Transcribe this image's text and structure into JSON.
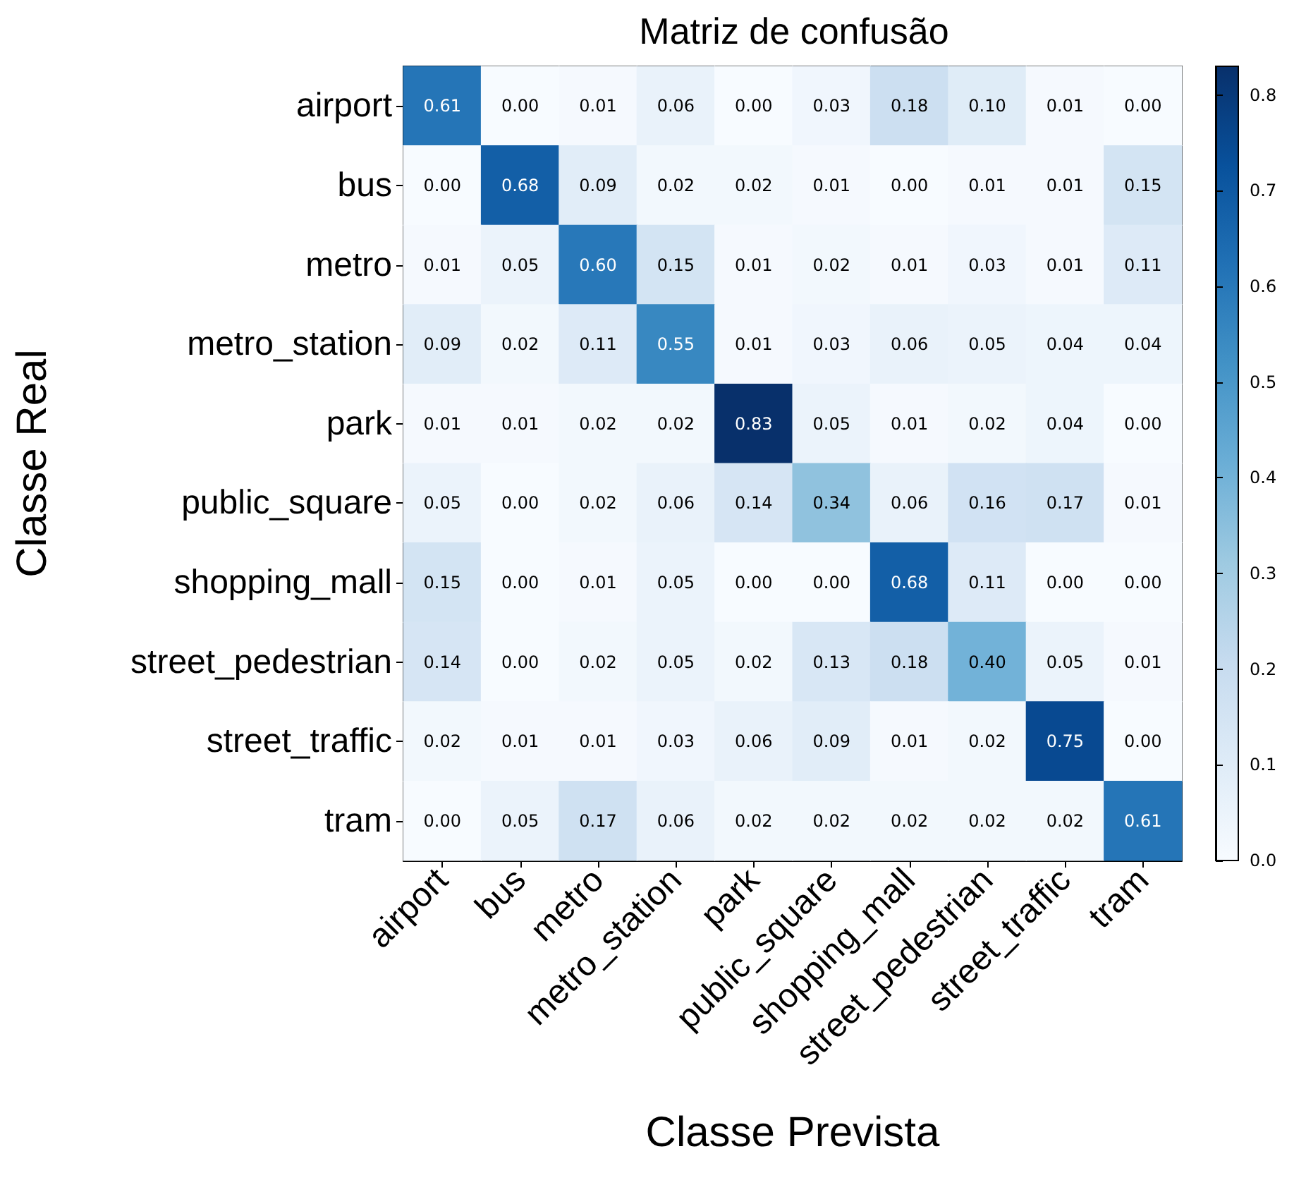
{
  "chart_data": {
    "type": "heatmap",
    "title": "Matriz de confusão",
    "xlabel": "Classe Prevista",
    "ylabel": "Classe Real",
    "clim": [
      0,
      0.83
    ],
    "cticks": [
      {
        "value": 0,
        "label": "0.0"
      },
      0.1,
      0.2,
      0.3,
      0.4,
      0.5,
      0.6,
      0.7,
      0.8
    ],
    "categories": [
      "airport",
      "bus",
      "metro",
      "metro_station",
      "park",
      "public_square",
      "shopping_mall",
      "street_pedestrian",
      "street_traffic",
      "tram"
    ],
    "y_categories": [
      "airport",
      "bus",
      "metro",
      "metro_station",
      "park",
      "public_square",
      "shopping_mall",
      "street_pedestrian",
      "street_traffic",
      "tram"
    ],
    "cell_labels": [
      [
        "0.61",
        "0.00",
        "0.01",
        "0.06",
        "0.00",
        "0.03",
        "0.18",
        "0.10",
        "0.01",
        "0.00"
      ],
      [
        "0.00",
        "0.68",
        "0.09",
        "0.02",
        "0.02",
        "0.01",
        "0.00",
        "0.01",
        "0.01",
        "0.15"
      ],
      [
        "0.01",
        "0.05",
        "0.60",
        "0.15",
        "0.01",
        "0.02",
        "0.01",
        "0.03",
        "0.01",
        "0.11"
      ],
      [
        "0.09",
        "0.02",
        "0.11",
        "0.55",
        "0.01",
        "0.03",
        "0.06",
        "0.05",
        "0.04",
        "0.04"
      ],
      [
        "0.01",
        "0.01",
        "0.02",
        "0.02",
        "0.83",
        "0.05",
        "0.01",
        "0.02",
        "0.04",
        "0.00"
      ],
      [
        "0.05",
        "0.00",
        "0.02",
        "0.06",
        "0.14",
        "0.34",
        "0.06",
        "0.16",
        "0.17",
        "0.01"
      ],
      [
        "0.15",
        "0.00",
        "0.01",
        "0.05",
        "0.00",
        "0.00",
        "0.68",
        "0.11",
        "0.00",
        "0.00"
      ],
      [
        "0.14",
        "0.00",
        "0.02",
        "0.05",
        "0.02",
        "0.13",
        "0.18",
        "0.40",
        "0.05",
        "0.01"
      ],
      [
        "0.02",
        "0.01",
        "0.01",
        "0.03",
        "0.06",
        "0.09",
        "0.01",
        "0.02",
        "0.75",
        "0.00"
      ],
      [
        "0.00",
        "0.05",
        "0.17",
        "0.06",
        "0.02",
        "0.02",
        "0.02",
        "0.02",
        "0.02",
        "0.61"
      ]
    ],
    "cells": [
      [
        0.61,
        0.0,
        0.01,
        0.06,
        0.0,
        0.03,
        0.18,
        0.1,
        0.01,
        0.0
      ],
      [
        0.0,
        0.68,
        0.09,
        0.02,
        0.02,
        0.01,
        0.0,
        0.01,
        0.01,
        0.15
      ],
      [
        0.01,
        0.05,
        0.6,
        0.15,
        0.01,
        0.02,
        0.01,
        0.03,
        0.01,
        0.11
      ],
      [
        0.09,
        0.02,
        0.11,
        0.55,
        0.01,
        0.03,
        0.06,
        0.05,
        0.04,
        0.04
      ],
      [
        0.01,
        0.01,
        0.02,
        0.02,
        0.83,
        0.05,
        0.01,
        0.02,
        0.04,
        0.0
      ],
      [
        0.05,
        0.0,
        0.02,
        0.06,
        0.14,
        0.34,
        0.06,
        0.16,
        0.17,
        0.01
      ],
      [
        0.15,
        0.0,
        0.01,
        0.05,
        0.0,
        0.0,
        0.68,
        0.11,
        0.0,
        0.0
      ],
      [
        0.14,
        0.0,
        0.02,
        0.05,
        0.02,
        0.13,
        0.18,
        0.4,
        0.05,
        0.01
      ],
      [
        0.02,
        0.01,
        0.01,
        0.03,
        0.06,
        0.09,
        0.01,
        0.02,
        0.75,
        0.0
      ],
      [
        0.0,
        0.05,
        0.17,
        0.06,
        0.02,
        0.02,
        0.02,
        0.02,
        0.02,
        0.61
      ]
    ]
  }
}
